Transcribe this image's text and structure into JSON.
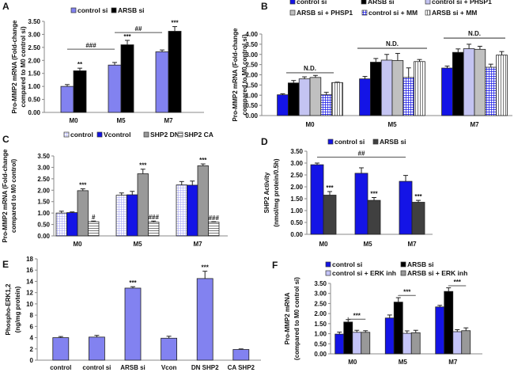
{
  "chart_data": [
    {
      "panel": "A",
      "type": "bar",
      "ylabel": [
        "Pro-MMP2 mRNA (Fold-change",
        "compared to M0 control si)"
      ],
      "ylim": [
        0,
        3.5
      ],
      "yticks": [
        "0.00",
        "0.50",
        "1.00",
        "1.50",
        "2.00",
        "2.50",
        "3.00",
        "3.50"
      ],
      "categories": [
        "M0",
        "M5",
        "M7"
      ],
      "series": [
        {
          "name": "control si",
          "color": "#8282f0",
          "values": [
            1.0,
            1.82,
            2.33
          ],
          "errors": [
            0.07,
            0.1,
            0.07
          ]
        },
        {
          "name": "ARSB si",
          "color": "#000000",
          "values": [
            1.6,
            2.6,
            3.12
          ],
          "errors": [
            0.1,
            0.17,
            0.18
          ]
        }
      ],
      "annotations": [
        {
          "cat": 0,
          "series": 1,
          "text": "**"
        },
        {
          "cat": 1,
          "series": 1,
          "text": "***"
        },
        {
          "cat": 2,
          "series": 1,
          "text": "***"
        }
      ],
      "brackets": [
        {
          "from": [
            0,
            0
          ],
          "to": [
            1,
            0
          ],
          "level": 2.43,
          "text": "###"
        },
        {
          "from": [
            1,
            0
          ],
          "to": [
            2,
            0
          ],
          "level": 3.07,
          "text": "##"
        }
      ]
    },
    {
      "panel": "B",
      "type": "bar",
      "ylabel": [
        "Pro-MMP2 mRNA (Fold-change",
        "compared to M0 control si)"
      ],
      "ylim": [
        0,
        4.0
      ],
      "yticks": [
        "0.00",
        "0.50",
        "1.00",
        "1.50",
        "2.00",
        "2.50",
        "3.00",
        "3.50",
        "4.00"
      ],
      "categories": [
        "M0",
        "M5",
        "M7"
      ],
      "series": [
        {
          "name": "control si",
          "color": "#1414e6",
          "values": [
            1.02,
            1.8,
            2.33
          ],
          "errors": [
            0.05,
            0.12,
            0.1
          ]
        },
        {
          "name": "ARSB si",
          "color": "#000000",
          "values": [
            1.6,
            2.62,
            3.1
          ],
          "errors": [
            0.12,
            0.18,
            0.17
          ]
        },
        {
          "name": "control si + PHSP1",
          "color": "#c4c4f2",
          "values": [
            1.8,
            2.72,
            3.28
          ],
          "errors": [
            0.1,
            0.28,
            0.22
          ]
        },
        {
          "name": "ARSB si + PHSP1",
          "color": "#c0c0c0",
          "values": [
            1.87,
            2.7,
            3.25
          ],
          "errors": [
            0.1,
            0.35,
            0.15
          ]
        },
        {
          "name": "control si + MM",
          "color": "#1414e6",
          "pattern": "grid",
          "values": [
            1.02,
            1.87,
            2.37
          ],
          "errors": [
            0.12,
            0.47,
            0.15
          ]
        },
        {
          "name": "ARSB si + MM",
          "color": "#ffffff",
          "pattern": "vstripes",
          "values": [
            1.62,
            2.65,
            2.97
          ],
          "errors": [
            0.02,
            0.1,
            0.17
          ]
        }
      ],
      "group_labels": [
        {
          "cat": 0,
          "level": 2.1,
          "text": "N.D."
        },
        {
          "cat": 1,
          "level": 3.3,
          "text": "N.D."
        },
        {
          "cat": 2,
          "level": 3.8,
          "text": "N.D."
        }
      ]
    },
    {
      "panel": "C",
      "type": "bar",
      "ylabel": [
        "Pro-MMP2 mRNA (Fold-change",
        "compared to M0 control)"
      ],
      "ylim": [
        0,
        3.5
      ],
      "yticks": [
        "0.00",
        "0.50",
        "1.00",
        "1.50",
        "2.00",
        "2.50",
        "3.00",
        "3.50"
      ],
      "categories": [
        "M0",
        "M5",
        "M7"
      ],
      "series": [
        {
          "name": "control",
          "color": "#8c8cf0",
          "pattern": "lightgrid",
          "values": [
            1.0,
            1.78,
            2.23
          ],
          "errors": [
            0.08,
            0.1,
            0.15
          ]
        },
        {
          "name": "Vcontrol",
          "color": "#1414e6",
          "values": [
            1.02,
            1.8,
            2.22
          ],
          "errors": [
            0.03,
            0.15,
            0.18
          ]
        },
        {
          "name": "SHP2 DN",
          "color": "#999999",
          "values": [
            1.98,
            2.72,
            3.07
          ],
          "errors": [
            0.08,
            0.2,
            0.08
          ]
        },
        {
          "name": "SHP2 CA",
          "color": "#ffffff",
          "pattern": "hstripes",
          "values": [
            0.62,
            0.6,
            0.6
          ],
          "errors": [
            0.03,
            0.05,
            0.02
          ]
        }
      ],
      "annotations": [
        {
          "cat": 0,
          "series": 2,
          "text": "***"
        },
        {
          "cat": 1,
          "series": 2,
          "text": "***"
        },
        {
          "cat": 2,
          "series": 2,
          "text": "***"
        },
        {
          "cat": 0,
          "series": 3,
          "text": "#"
        },
        {
          "cat": 1,
          "series": 3,
          "text": "###"
        },
        {
          "cat": 2,
          "series": 3,
          "text": "###"
        }
      ]
    },
    {
      "panel": "D",
      "type": "bar",
      "ylabel": [
        "SHP2 Activity",
        "(nmol/mg protein/0.5h)"
      ],
      "ylim": [
        0,
        3.5
      ],
      "yticks": [
        "0.00",
        "0.50",
        "1.00",
        "1.50",
        "2.00",
        "2.50",
        "3.00",
        "3.50"
      ],
      "categories": [
        "M0",
        "M5",
        "M7"
      ],
      "series": [
        {
          "name": "control si",
          "color": "#1414e6",
          "values": [
            2.93,
            2.57,
            2.23
          ],
          "errors": [
            0.07,
            0.23,
            0.25
          ]
        },
        {
          "name": "ARSB si",
          "color": "#404040",
          "values": [
            1.65,
            1.43,
            1.35
          ],
          "errors": [
            0.15,
            0.12,
            0.08
          ]
        }
      ],
      "annotations": [
        {
          "cat": 0,
          "series": 1,
          "text": "***"
        },
        {
          "cat": 1,
          "series": 1,
          "text": "***"
        },
        {
          "cat": 2,
          "series": 1,
          "text": "***"
        }
      ],
      "brackets": [
        {
          "from": [
            0,
            0
          ],
          "to": [
            2,
            0
          ],
          "level": 3.25,
          "text": "##"
        }
      ]
    },
    {
      "panel": "E",
      "type": "bar",
      "ylabel": [
        "Phospho-ERK1,2",
        "(ng/mg protein)"
      ],
      "ylim": [
        0,
        18
      ],
      "yticks": [
        "0",
        "2",
        "4",
        "6",
        "8",
        "10",
        "12",
        "14",
        "16",
        "18"
      ],
      "categories": [
        "control",
        "control si",
        "ARSB si",
        "Vcon",
        "DN SHP2",
        "CA SHP2"
      ],
      "series": [
        {
          "color": "#8282f0",
          "values": [
            4.0,
            4.1,
            12.8,
            3.9,
            14.5,
            1.9
          ],
          "errors": [
            0.2,
            0.3,
            0.25,
            0.35,
            1.3,
            0.1
          ]
        }
      ],
      "annotations": [
        {
          "cat": 2,
          "series": 0,
          "text": "***"
        },
        {
          "cat": 4,
          "series": 0,
          "text": "***"
        }
      ]
    },
    {
      "panel": "F",
      "type": "bar",
      "ylabel": [
        "Pro-MMP2 mRNA",
        "(compared to M0 control si)"
      ],
      "ylim": [
        0,
        3.5
      ],
      "yticks": [
        "0.00",
        "0.50",
        "1.00",
        "1.50",
        "2.00",
        "2.50",
        "3.00",
        "3.50"
      ],
      "categories": [
        "M0",
        "M5",
        "M7"
      ],
      "series": [
        {
          "name": "control si",
          "color": "#1414e6",
          "values": [
            0.98,
            1.78,
            2.33
          ],
          "errors": [
            0.1,
            0.15,
            0.08
          ]
        },
        {
          "name": "ARSB si",
          "color": "#000000",
          "values": [
            1.58,
            2.57,
            3.1
          ],
          "errors": [
            0.12,
            0.22,
            0.18
          ]
        },
        {
          "name": "control si + ERK inh",
          "color": "#c4c4f8",
          "values": [
            1.07,
            1.02,
            1.1
          ],
          "errors": [
            0.1,
            0.12,
            0.1
          ]
        },
        {
          "name": "ARSB si + ERK inh",
          "color": "#999999",
          "values": [
            1.07,
            1.05,
            1.15
          ],
          "errors": [
            0.08,
            0.12,
            0.14
          ]
        }
      ],
      "brackets": [
        {
          "from": [
            0,
            1
          ],
          "to": [
            0,
            3
          ],
          "level": 1.72,
          "text": "***"
        },
        {
          "from": [
            1,
            1
          ],
          "to": [
            1,
            3
          ],
          "level": 2.9,
          "text": "***"
        },
        {
          "from": [
            2,
            1
          ],
          "to": [
            2,
            3
          ],
          "level": 3.38,
          "text": "***"
        }
      ]
    }
  ]
}
